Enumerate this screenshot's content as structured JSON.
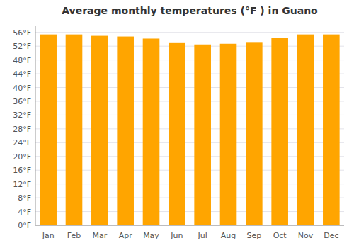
{
  "chart_data": {
    "type": "bar",
    "title": "Average monthly temperatures (°F ) in Guano",
    "categories": [
      "Jan",
      "Feb",
      "Mar",
      "Apr",
      "May",
      "Jun",
      "Jul",
      "Aug",
      "Sep",
      "Oct",
      "Nov",
      "Dec"
    ],
    "values": [
      55.4,
      55.4,
      55.0,
      54.8,
      54.2,
      53.1,
      52.5,
      52.7,
      53.2,
      54.3,
      55.4,
      55.4
    ],
    "color": "#FFA500",
    "ylim": [
      0,
      58
    ],
    "yticks": [
      {
        "value": 0,
        "label": "0°F"
      },
      {
        "value": 4,
        "label": "4°F"
      },
      {
        "value": 8,
        "label": "8°F"
      },
      {
        "value": 12,
        "label": "12°F"
      },
      {
        "value": 16,
        "label": "16°F"
      },
      {
        "value": 20,
        "label": "20°F"
      },
      {
        "value": 24,
        "label": "24°F"
      },
      {
        "value": 28,
        "label": "28°F"
      },
      {
        "value": 32,
        "label": "32°F"
      },
      {
        "value": 36,
        "label": "36°F"
      },
      {
        "value": 40,
        "label": "40°F"
      },
      {
        "value": 44,
        "label": "44°F"
      },
      {
        "value": 48,
        "label": "48°F"
      },
      {
        "value": 52,
        "label": "52°F"
      },
      {
        "value": 56,
        "label": "56°F"
      }
    ],
    "grid": true
  }
}
